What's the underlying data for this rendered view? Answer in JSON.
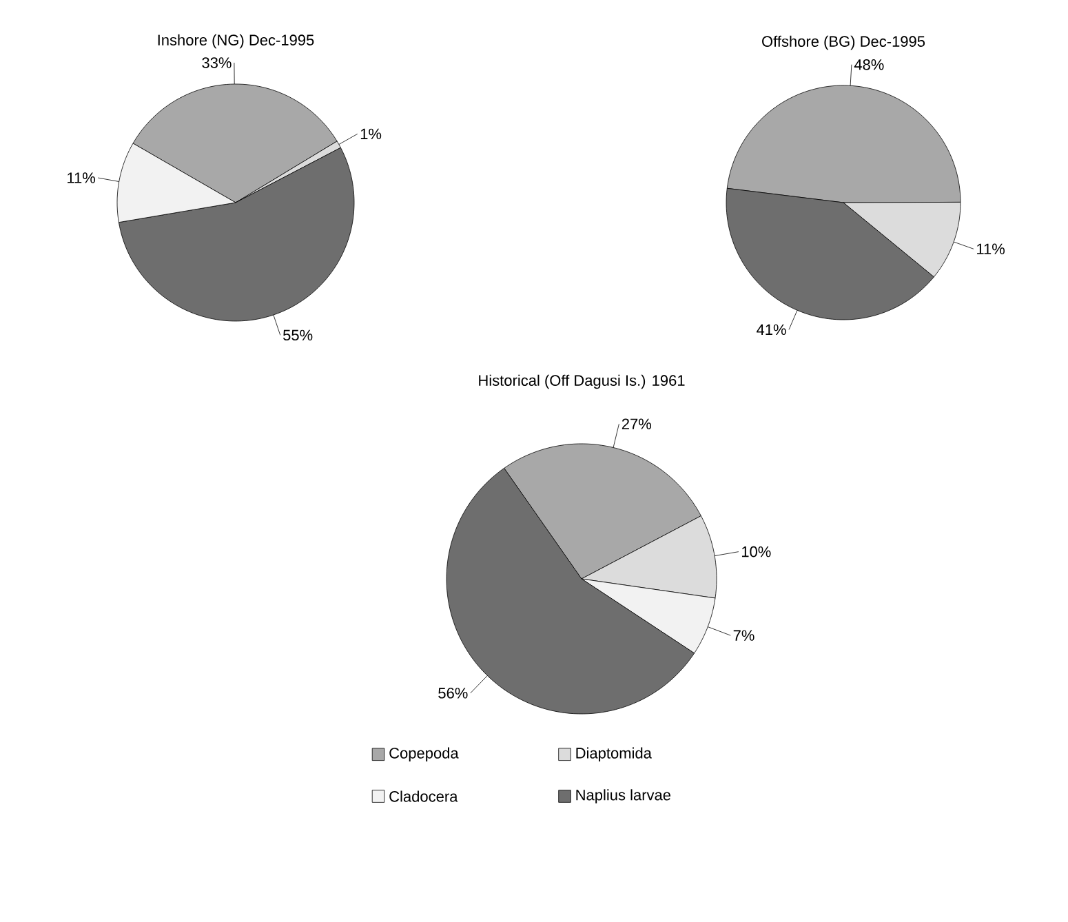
{
  "chart_data": [
    {
      "type": "pie",
      "title": "Inshore (NG) Dec-1995",
      "categories": [
        null,
        null,
        null,
        null
      ],
      "values": [
        33,
        1,
        55,
        11
      ],
      "value_labels": [
        "33%",
        "1%",
        "55%",
        "11%"
      ],
      "colors": [
        "#a8a8a8",
        "#dcdcdc",
        "#6e6e6e",
        "#f2f2f2"
      ]
    },
    {
      "type": "pie",
      "title": "Offshore (BG) Dec-1995",
      "categories": [
        null,
        null,
        null
      ],
      "values": [
        48,
        11,
        41
      ],
      "value_labels": [
        "48%",
        "11%",
        "41%"
      ],
      "colors": [
        "#a8a8a8",
        "#dcdcdc",
        "#6e6e6e"
      ]
    },
    {
      "type": "pie",
      "title": "Historical (Off Dagusi Is.) 1961",
      "categories": [
        "Copepoda",
        "Diaptomida",
        "Cladocera",
        "Naplius larvae"
      ],
      "values": [
        27,
        10,
        7,
        56
      ],
      "value_labels": [
        "27%",
        "10%",
        "7%",
        "56%"
      ],
      "colors": [
        "#a8a8a8",
        "#dcdcdc",
        "#f2f2f2",
        "#6e6e6e"
      ],
      "legend": "bottom"
    }
  ]
}
